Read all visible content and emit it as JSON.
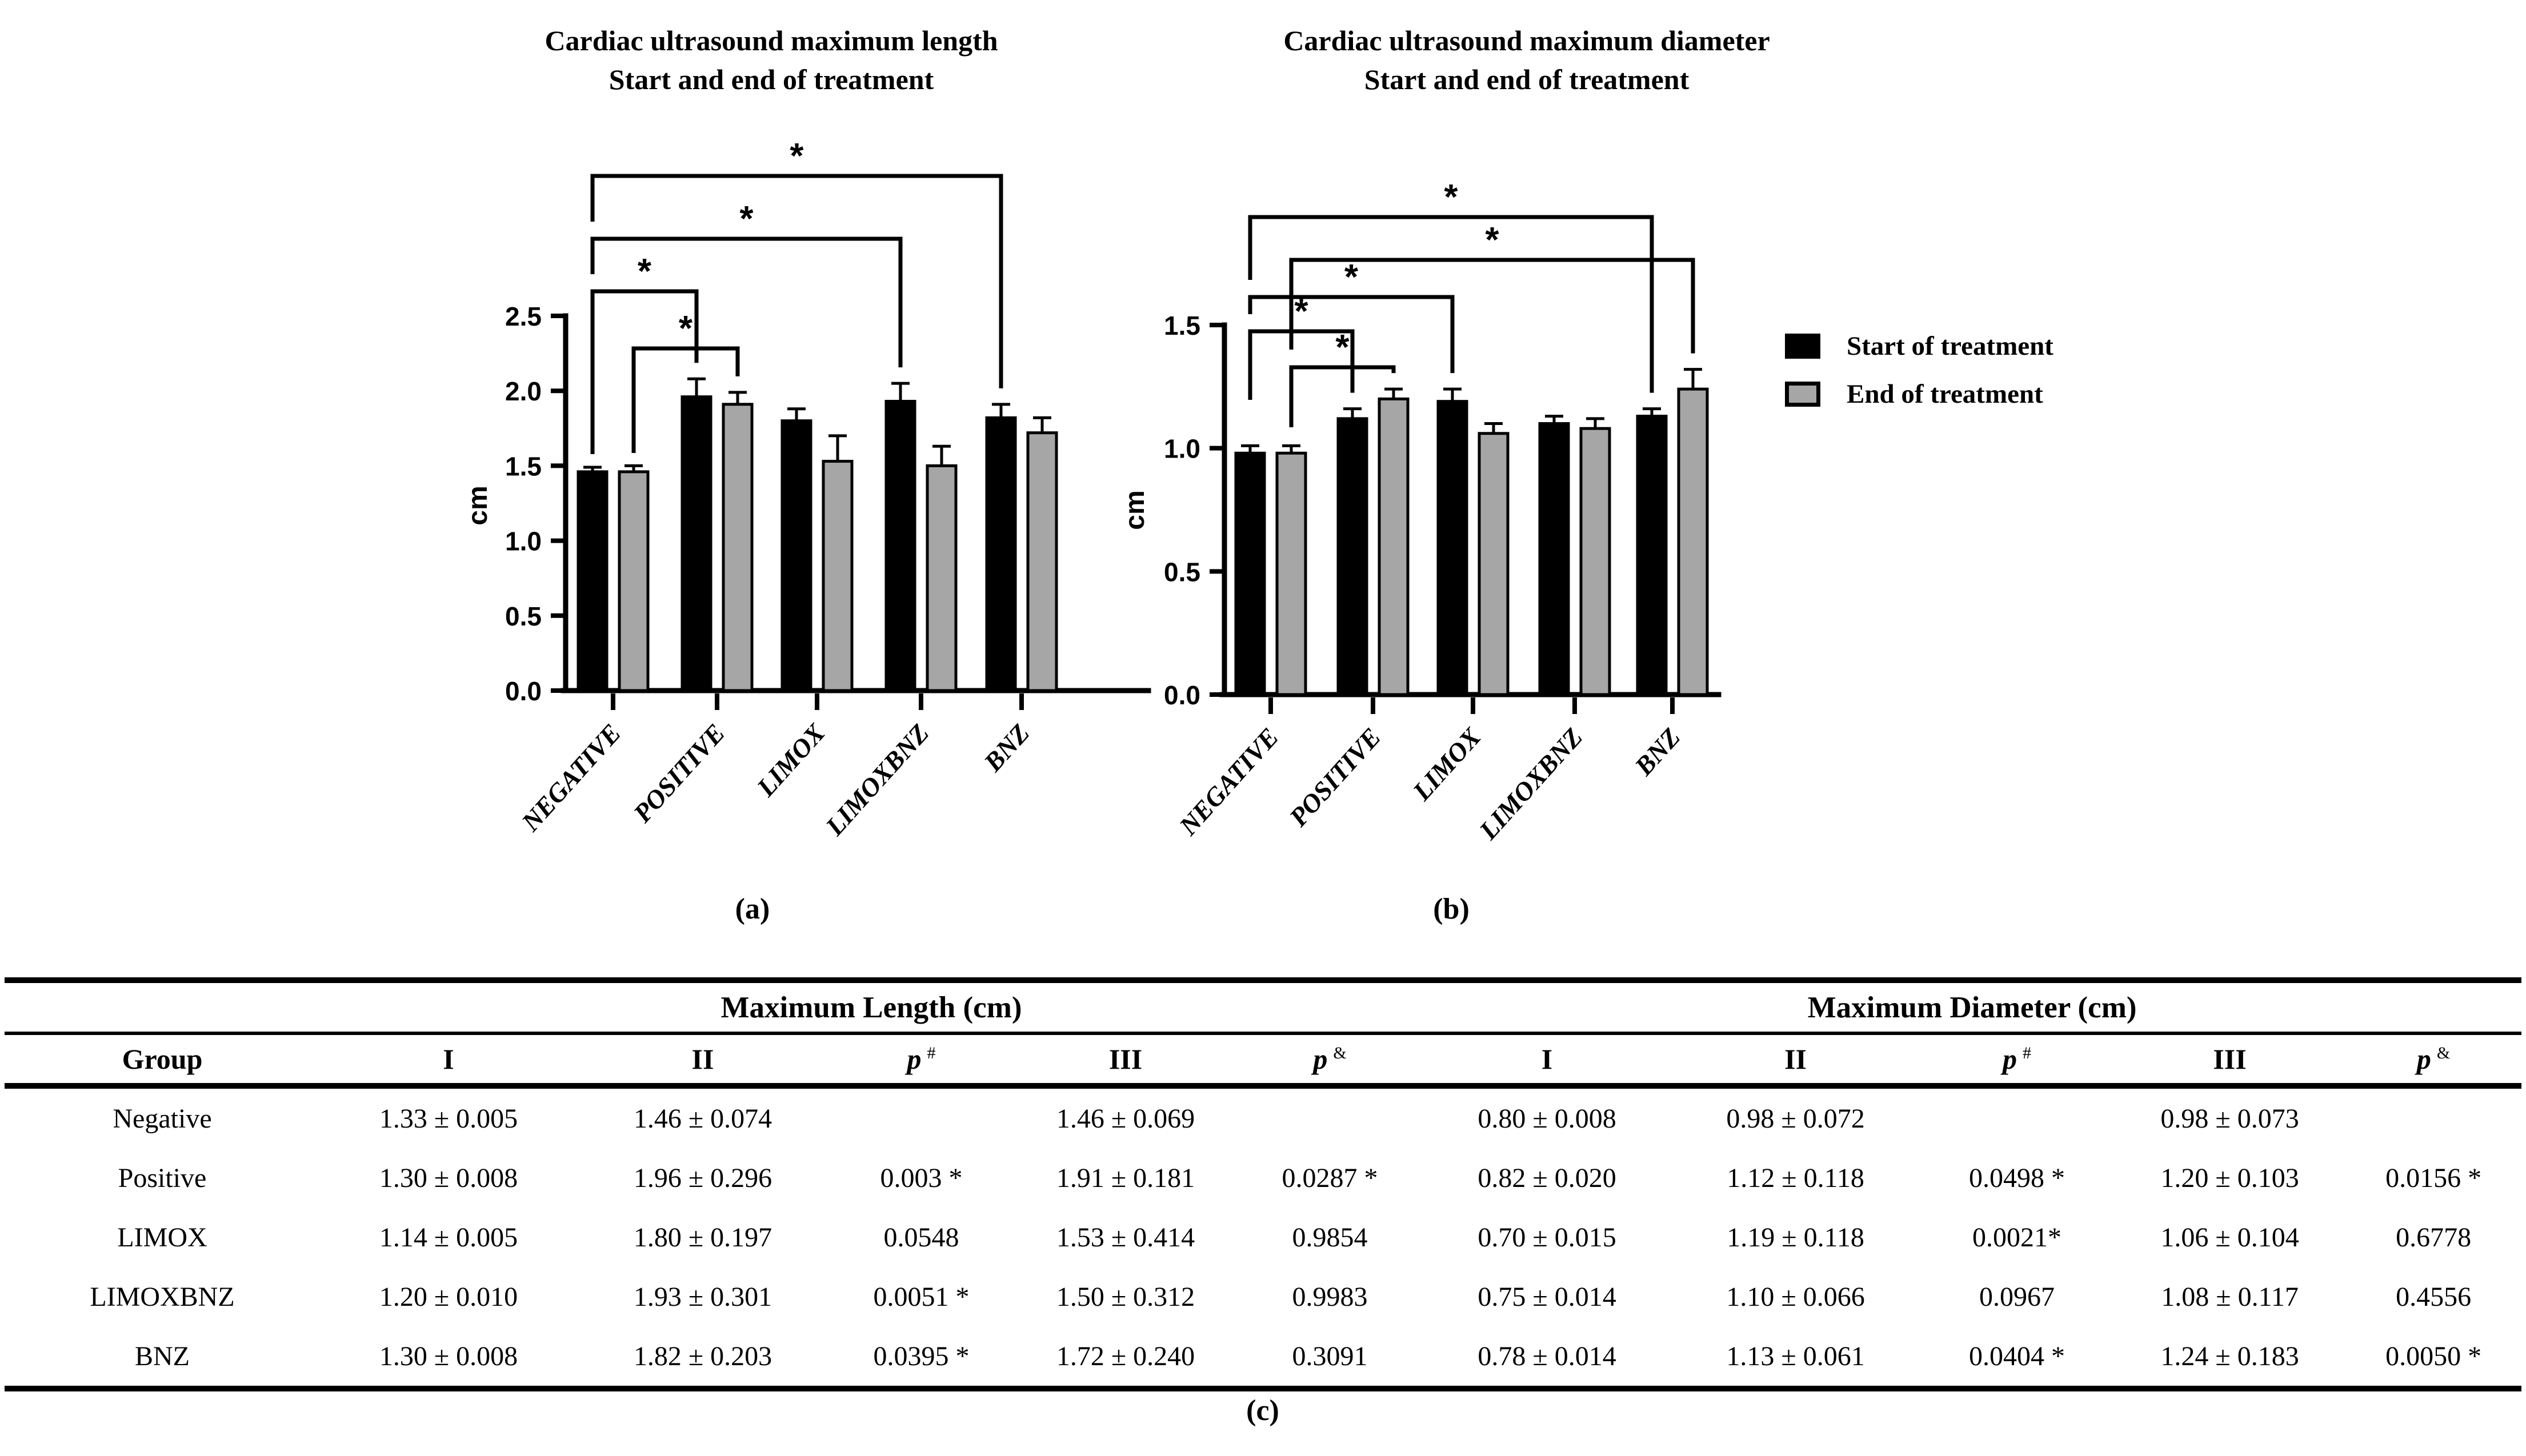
{
  "panel_captions": {
    "a": "(a)",
    "b": "(b)",
    "c": "(c)"
  },
  "legend": {
    "items": [
      {
        "label": "Start of treatment",
        "color": "#000000",
        "icon": "filled-square-icon"
      },
      {
        "label": "End of treatment",
        "color": "#a6a6a6",
        "icon": "outlined-square-icon"
      }
    ]
  },
  "chart_data": [
    {
      "type": "bar",
      "panel": "a",
      "title": "Cardiac ultrasound maximum length",
      "subtitle": "Start and end of treatment",
      "ylabel": "cm",
      "ylim": [
        0,
        2.5
      ],
      "yticks": [
        "0.0",
        "0.5",
        "1.0",
        "1.5",
        "2.0",
        "2.5"
      ],
      "categories": [
        "NEGATIVE",
        "POSITIVE",
        "LIMOX",
        "LIMOXBNZ",
        "BNZ"
      ],
      "series": [
        {
          "name": "Start of treatment",
          "color": "#000000",
          "values": [
            1.46,
            1.96,
            1.8,
            1.93,
            1.82
          ],
          "errors": [
            0.03,
            0.12,
            0.08,
            0.12,
            0.09
          ]
        },
        {
          "name": "End of treatment",
          "color": "#a6a6a6",
          "values": [
            1.46,
            1.91,
            1.53,
            1.5,
            1.72
          ],
          "errors": [
            0.04,
            0.08,
            0.17,
            0.13,
            0.1
          ]
        }
      ],
      "significance_brackets": [
        {
          "from_category": "NEGATIVE",
          "from_series": "Start of treatment",
          "to_category": "BNZ",
          "to_series": "Start of treatment",
          "label": "*"
        },
        {
          "from_category": "NEGATIVE",
          "from_series": "Start of treatment",
          "to_category": "LIMOXBNZ",
          "to_series": "Start of treatment",
          "label": "*"
        },
        {
          "from_category": "NEGATIVE",
          "from_series": "Start of treatment",
          "to_category": "POSITIVE",
          "to_series": "Start of treatment",
          "label": "*"
        },
        {
          "from_category": "NEGATIVE",
          "from_series": "End of treatment",
          "to_category": "POSITIVE",
          "to_series": "End of treatment",
          "label": "*"
        }
      ],
      "grid": false,
      "legend_position": "none"
    },
    {
      "type": "bar",
      "panel": "b",
      "title": "Cardiac ultrasound maximum diameter",
      "subtitle": "Start and end of treatment",
      "ylabel": "cm",
      "ylim": [
        0,
        1.5
      ],
      "yticks": [
        "0.0",
        "0.5",
        "1.0",
        "1.5"
      ],
      "categories": [
        "NEGATIVE",
        "POSITIVE",
        "LIMOX",
        "LIMOXBNZ",
        "BNZ"
      ],
      "series": [
        {
          "name": "Start of treatment",
          "color": "#000000",
          "values": [
            0.98,
            1.12,
            1.19,
            1.1,
            1.13
          ],
          "errors": [
            0.03,
            0.04,
            0.05,
            0.03,
            0.03
          ]
        },
        {
          "name": "End of treatment",
          "color": "#a6a6a6",
          "values": [
            0.98,
            1.2,
            1.06,
            1.08,
            1.24
          ],
          "errors": [
            0.03,
            0.04,
            0.04,
            0.04,
            0.08
          ]
        }
      ],
      "significance_brackets": [
        {
          "from_category": "NEGATIVE",
          "from_series": "Start of treatment",
          "to_category": "BNZ",
          "to_series": "Start of treatment",
          "label": "*"
        },
        {
          "from_category": "NEGATIVE",
          "from_series": "End of treatment",
          "to_category": "BNZ",
          "to_series": "End of treatment",
          "label": "*"
        },
        {
          "from_category": "NEGATIVE",
          "from_series": "Start of treatment",
          "to_category": "LIMOX",
          "to_series": "Start of treatment",
          "label": "*"
        },
        {
          "from_category": "NEGATIVE",
          "from_series": "Start of treatment",
          "to_category": "POSITIVE",
          "to_series": "Start of treatment",
          "label": "*"
        },
        {
          "from_category": "NEGATIVE",
          "from_series": "End of treatment",
          "to_category": "POSITIVE",
          "to_series": "End of treatment",
          "label": "*"
        }
      ],
      "grid": false,
      "legend_position": "none"
    }
  ],
  "table": {
    "section_headers": [
      {
        "label": "Maximum Length (cm)"
      },
      {
        "label": "Maximum Diameter (cm)"
      }
    ],
    "column_headers": {
      "group": "Group",
      "i": "I",
      "ii": "II",
      "iii": "III",
      "p": "p",
      "hash": "#",
      "amp": "&"
    },
    "rows": [
      [
        "Negative",
        "1.33 ± 0.005",
        "1.46 ± 0.074",
        "",
        "1.46 ± 0.069",
        "",
        "0.80 ± 0.008",
        "0.98 ± 0.072",
        "",
        "0.98 ± 0.073",
        ""
      ],
      [
        "Positive",
        "1.30 ± 0.008",
        "1.96 ± 0.296",
        "0.003 *",
        "1.91 ± 0.181",
        "0.0287 *",
        "0.82 ± 0.020",
        "1.12 ± 0.118",
        "0.0498 *",
        "1.20 ± 0.103",
        "0.0156 *"
      ],
      [
        "LIMOX",
        "1.14 ± 0.005",
        "1.80 ± 0.197",
        "0.0548",
        "1.53 ± 0.414",
        "0.9854",
        "0.70 ± 0.015",
        "1.19 ± 0.118",
        "0.0021*",
        "1.06 ± 0.104",
        "0.6778"
      ],
      [
        "LIMOXBNZ",
        "1.20 ± 0.010",
        "1.93 ± 0.301",
        "0.0051 *",
        "1.50 ± 0.312",
        "0.9983",
        "0.75 ± 0.014",
        "1.10 ± 0.066",
        "0.0967",
        "1.08 ± 0.117",
        "0.4556"
      ],
      [
        "BNZ",
        "1.30 ± 0.008",
        "1.82 ± 0.203",
        "0.0395 *",
        "1.72 ± 0.240",
        "0.3091",
        "0.78 ± 0.014",
        "1.13 ± 0.061",
        "0.0404 *",
        "1.24 ± 0.183",
        "0.0050 *"
      ]
    ]
  }
}
